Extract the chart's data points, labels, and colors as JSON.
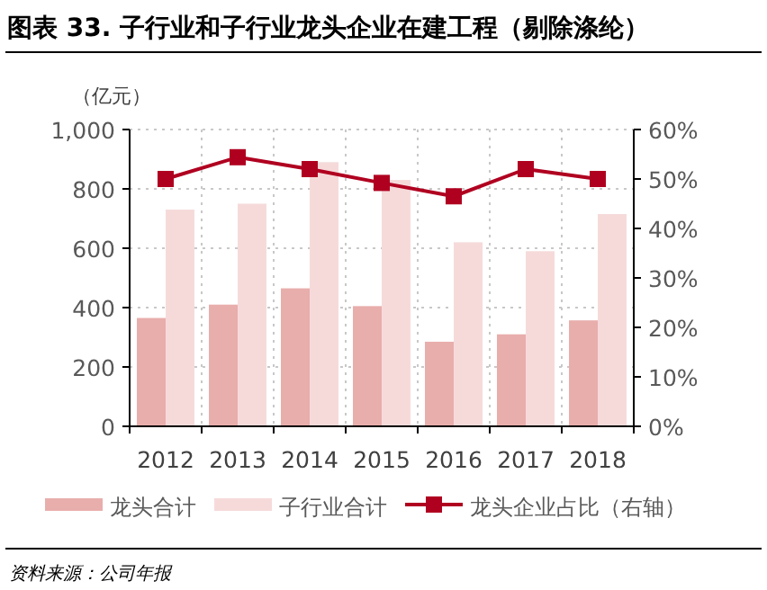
{
  "chart_data": {
    "type": "bar",
    "title": "图表 33. 子行业和子行业龙头企业在建工程（剔除涤纶）",
    "ylabel": "（亿元）",
    "categories": [
      "2012",
      "2013",
      "2014",
      "2015",
      "2016",
      "2017",
      "2018"
    ],
    "series": [
      {
        "name": "龙头合计",
        "color": "#e8aeac",
        "values": [
          365,
          410,
          465,
          405,
          285,
          310,
          357
        ]
      },
      {
        "name": "子行业合计",
        "color": "#f6dada",
        "values": [
          730,
          750,
          890,
          830,
          620,
          590,
          715
        ]
      },
      {
        "name": "龙头企业占比（右轴）",
        "type": "line",
        "axis": "y2",
        "color": "#b00020",
        "marker": "square",
        "values": [
          50,
          54.4,
          52,
          49.2,
          46.5,
          52,
          50
        ]
      }
    ],
    "ylim": [
      0,
      1000
    ],
    "yticks": [
      0,
      200,
      400,
      600,
      800,
      {
        "value": 1000,
        "label": "1,000"
      }
    ],
    "y2lim": [
      0,
      60
    ],
    "y2ticks": [
      {
        "value": 0,
        "label": "0%"
      },
      {
        "value": 10,
        "label": "10%"
      },
      {
        "value": 20,
        "label": "20%"
      },
      {
        "value": 30,
        "label": "30%"
      },
      {
        "value": 40,
        "label": "40%"
      },
      {
        "value": 50,
        "label": "50%"
      },
      {
        "value": 60,
        "label": "60%"
      }
    ],
    "grid": true,
    "legend": "bottom",
    "annotations": [
      "资料来源：公司年报"
    ]
  }
}
